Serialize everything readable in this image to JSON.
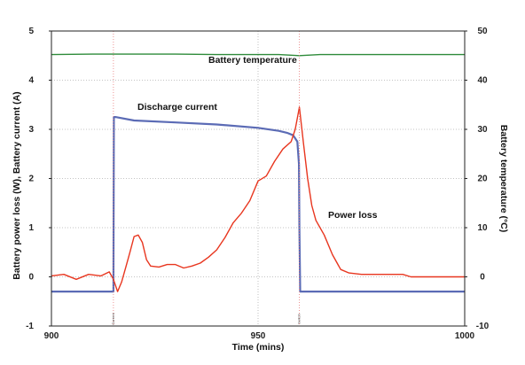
{
  "chart_data": {
    "type": "line",
    "xlabel": "Time (mins)",
    "ylabel": "Battery power loss (W), Battery current (A)",
    "y2label": "Battery temperature (°C)",
    "xlim": [
      900,
      1000
    ],
    "ylim": [
      -1,
      5
    ],
    "y2lim": [
      -10,
      50
    ],
    "xticks": [
      900,
      950,
      1000
    ],
    "yticks": [
      -1,
      0,
      1,
      2,
      3,
      4,
      5
    ],
    "y2ticks": [
      -10,
      0,
      10,
      20,
      30,
      40,
      50
    ],
    "grid": true,
    "colors": {
      "discharge": "#5b6bb5",
      "power": "#e8361f",
      "temperature": "#2e8b3a",
      "marker": "#e87a7a",
      "grid": "#b0b0b0"
    },
    "series": [
      {
        "name": "Discharge current",
        "axis": "left",
        "x": [
          900,
          915,
          915.1,
          915.5,
          920,
          930,
          940,
          950,
          955,
          957,
          958.5,
          959.5,
          959.9,
          960,
          960.2,
          1000
        ],
        "y": [
          -0.3,
          -0.3,
          3.25,
          3.25,
          3.18,
          3.14,
          3.1,
          3.03,
          2.97,
          2.93,
          2.88,
          2.75,
          2.3,
          1.0,
          -0.3,
          -0.3
        ]
      },
      {
        "name": "Power loss",
        "axis": "left",
        "x": [
          900,
          903,
          906,
          909,
          912,
          914,
          915,
          916,
          917,
          918,
          919,
          920,
          921,
          922,
          923,
          924,
          926,
          928,
          930,
          932,
          934,
          936,
          938,
          940,
          942,
          944,
          946,
          948,
          950,
          952,
          954,
          956,
          958,
          959,
          960,
          961,
          962,
          963,
          964,
          966,
          968,
          970,
          972,
          975,
          980,
          985,
          987,
          990,
          995,
          1000
        ],
        "y": [
          0.02,
          0.05,
          -0.05,
          0.05,
          0.02,
          0.1,
          -0.05,
          -0.3,
          -0.1,
          0.2,
          0.5,
          0.82,
          0.85,
          0.7,
          0.35,
          0.22,
          0.2,
          0.25,
          0.25,
          0.18,
          0.22,
          0.28,
          0.4,
          0.55,
          0.8,
          1.1,
          1.3,
          1.55,
          1.95,
          2.05,
          2.35,
          2.6,
          2.75,
          3.0,
          3.45,
          2.7,
          2.0,
          1.45,
          1.15,
          0.85,
          0.45,
          0.15,
          0.08,
          0.05,
          0.05,
          0.05,
          0.0,
          0.0,
          0.0,
          0.0
        ]
      },
      {
        "name": "Battery temperature",
        "axis": "right",
        "x": [
          900,
          910,
          920,
          930,
          940,
          950,
          955,
          960,
          965,
          970,
          980,
          990,
          1000
        ],
        "y": [
          45.2,
          45.3,
          45.3,
          45.3,
          45.2,
          45.2,
          45.2,
          45.0,
          45.2,
          45.2,
          45.2,
          45.2,
          45.2
        ]
      }
    ],
    "markers": [
      {
        "x": 915,
        "label": "Current"
      },
      {
        "x": 960,
        "label": "Switch"
      }
    ],
    "annotations": [
      {
        "text": "Battery temperature",
        "x": 235,
        "y": 4.35
      },
      {
        "text": "Discharge current",
        "x": 155,
        "y": 3.4
      },
      {
        "text": "Power loss",
        "x": 370,
        "y": 1.2
      }
    ]
  }
}
